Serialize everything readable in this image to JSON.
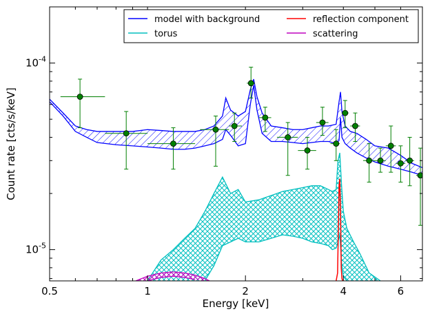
{
  "chart_data": {
    "type": "line",
    "xlabel": "Energy [keV]",
    "ylabel": "Count rate [cts/s/keV]",
    "xscale": "log",
    "yscale": "log",
    "xlim": [
      0.5,
      7.0
    ],
    "ylim": [
      6.8e-06,
      0.0002
    ],
    "x_ticks": [
      {
        "value": 0.5,
        "label": "0.5"
      },
      {
        "value": 1,
        "label": "1"
      },
      {
        "value": 2,
        "label": "2"
      },
      {
        "value": 4,
        "label": "4"
      },
      {
        "value": 6,
        "label": "6"
      }
    ],
    "y_ticks": [
      {
        "value": 1e-05,
        "base": "10",
        "exp": "-5"
      },
      {
        "value": 0.0001,
        "base": "10",
        "exp": "-4"
      }
    ],
    "legend_position": "top-right",
    "legend": [
      {
        "name": "model with background",
        "color": "#0000ff"
      },
      {
        "name": "reflection component",
        "color": "#ff0000"
      },
      {
        "name": "torus",
        "color": "#00bfbf"
      },
      {
        "name": "scattering",
        "color": "#bf00bf"
      }
    ],
    "series": [
      {
        "name": "model with background",
        "color": "#0000ff",
        "style": "band",
        "x": [
          0.5,
          0.55,
          0.6,
          0.65,
          0.7,
          0.8,
          0.9,
          1.0,
          1.1,
          1.2,
          1.3,
          1.4,
          1.5,
          1.6,
          1.7,
          1.74,
          1.8,
          1.9,
          2.0,
          2.07,
          2.12,
          2.17,
          2.25,
          2.4,
          2.6,
          2.8,
          3.0,
          3.2,
          3.4,
          3.6,
          3.8,
          3.88,
          3.92,
          3.96,
          4.05,
          4.2,
          4.4,
          4.7,
          5.0,
          5.5,
          6.0,
          6.5,
          7.0
        ],
        "upper": [
          6.4e-05,
          5.4e-05,
          4.6e-05,
          4.4e-05,
          4.3e-05,
          4.3e-05,
          4.3e-05,
          4.4e-05,
          4.35e-05,
          4.3e-05,
          4.3e-05,
          4.3e-05,
          4.4e-05,
          4.6e-05,
          5.2e-05,
          6.5e-05,
          5.6e-05,
          5.2e-05,
          5.5e-05,
          7.2e-05,
          8.2e-05,
          6.6e-05,
          5.4e-05,
          4.6e-05,
          4.5e-05,
          4.4e-05,
          4.4e-05,
          4.5e-05,
          4.6e-05,
          4.6e-05,
          4.7e-05,
          6.2e-05,
          7e-05,
          5.5e-05,
          4.6e-05,
          4.3e-05,
          4.2e-05,
          3.9e-05,
          3.6e-05,
          3.5e-05,
          3.2e-05,
          2.9e-05,
          2.75e-05
        ],
        "lower": [
          6.2e-05,
          5.2e-05,
          4.3e-05,
          4e-05,
          3.75e-05,
          3.65e-05,
          3.6e-05,
          3.55e-05,
          3.5e-05,
          3.45e-05,
          3.45e-05,
          3.5e-05,
          3.6e-05,
          3.7e-05,
          3.9e-05,
          4.4e-05,
          4.1e-05,
          3.6e-05,
          3.7e-05,
          6e-05,
          7.6e-05,
          5.6e-05,
          4.2e-05,
          3.8e-05,
          3.8e-05,
          3.75e-05,
          3.7e-05,
          3.75e-05,
          3.8e-05,
          3.8e-05,
          3.7e-05,
          3.85e-05,
          5.1e-05,
          4e-05,
          3.7e-05,
          3.5e-05,
          3.3e-05,
          3.1e-05,
          2.95e-05,
          2.8e-05,
          2.7e-05,
          2.6e-05,
          2.5e-05
        ]
      },
      {
        "name": "torus",
        "color": "#00bfbf",
        "style": "band",
        "x": [
          1.0,
          1.1,
          1.2,
          1.3,
          1.4,
          1.5,
          1.6,
          1.7,
          1.8,
          1.9,
          2.0,
          2.2,
          2.4,
          2.6,
          2.8,
          3.0,
          3.2,
          3.4,
          3.6,
          3.7,
          3.8,
          3.85,
          3.9,
          3.95,
          4.0,
          4.1,
          4.3,
          4.5,
          4.8,
          5.2
        ],
        "upper": [
          6.8e-06,
          8.8e-06,
          1e-05,
          1.15e-05,
          1.3e-05,
          1.6e-05,
          2e-05,
          2.45e-05,
          2e-05,
          2.1e-05,
          1.8e-05,
          1.85e-05,
          1.95e-05,
          2.05e-05,
          2.1e-05,
          2.15e-05,
          2.2e-05,
          2.2e-05,
          2.1e-05,
          2.05e-05,
          2.1e-05,
          3e-05,
          3.3e-05,
          2.2e-05,
          1.6e-05,
          1.3e-05,
          1.1e-05,
          9.5e-06,
          7.5e-06,
          6.8e-06
        ],
        "lower": [
          null,
          null,
          null,
          null,
          null,
          6.8e-06,
          8.2e-06,
          1.05e-05,
          1.1e-05,
          1.15e-05,
          1.1e-05,
          1.1e-05,
          1.15e-05,
          1.2e-05,
          1.18e-05,
          1.15e-05,
          1.1e-05,
          1.08e-05,
          1.05e-05,
          1e-05,
          1.02e-05,
          1.1e-05,
          1.2e-05,
          8.5e-06,
          7.2e-06,
          6.8e-06,
          null,
          null,
          null,
          null
        ]
      },
      {
        "name": "reflection component",
        "color": "#ff0000",
        "style": "line",
        "x": [
          3.8,
          3.84,
          3.86,
          3.88,
          3.9,
          3.92,
          3.94,
          3.96,
          3.98
        ],
        "values": [
          6.8e-06,
          7.5e-06,
          1.3e-05,
          2.2e-05,
          2.4e-05,
          1.6e-05,
          8e-06,
          7e-06,
          6.8e-06
        ]
      },
      {
        "name": "scattering",
        "color": "#bf00bf",
        "style": "band",
        "x": [
          0.92,
          1.0,
          1.1,
          1.2,
          1.3,
          1.4,
          1.5,
          1.55
        ],
        "upper": [
          6.8e-06,
          7.2e-06,
          7.5e-06,
          7.6e-06,
          7.5e-06,
          7.3e-06,
          7e-06,
          6.8e-06
        ],
        "lower": [
          null,
          6.8e-06,
          7.1e-06,
          7.2e-06,
          7.1e-06,
          6.9e-06,
          null,
          null
        ]
      }
    ],
    "data_points": {
      "color": "#007f00",
      "points": [
        {
          "x": 0.62,
          "y": 6.6e-05,
          "xerr": [
            0.54,
            0.74
          ],
          "yerr": [
            4.5e-05,
            8.2e-05
          ]
        },
        {
          "x": 0.86,
          "y": 4.2e-05,
          "xerr": [
            0.74,
            1.0
          ],
          "yerr": [
            2.7e-05,
            5.5e-05
          ]
        },
        {
          "x": 1.2,
          "y": 3.7e-05,
          "xerr": [
            1.0,
            1.4
          ],
          "yerr": [
            2.7e-05,
            4.5e-05
          ]
        },
        {
          "x": 1.62,
          "y": 4.4e-05,
          "xerr": [
            1.45,
            1.78
          ],
          "yerr": [
            2.8e-05,
            5.2e-05
          ]
        },
        {
          "x": 1.85,
          "y": 4.6e-05,
          "xerr": [
            1.78,
            1.95
          ],
          "yerr": [
            3.8e-05,
            5.4e-05
          ]
        },
        {
          "x": 2.08,
          "y": 7.8e-05,
          "xerr": [
            2.02,
            2.14
          ],
          "yerr": [
            6.5e-05,
            9.5e-05
          ]
        },
        {
          "x": 2.3,
          "y": 5.1e-05,
          "xerr": [
            2.2,
            2.4
          ],
          "yerr": [
            4.3e-05,
            5.8e-05
          ]
        },
        {
          "x": 2.7,
          "y": 4e-05,
          "xerr": [
            2.5,
            2.9
          ],
          "yerr": [
            2.5e-05,
            4.8e-05
          ]
        },
        {
          "x": 3.1,
          "y": 3.4e-05,
          "xerr": [
            2.9,
            3.3
          ],
          "yerr": [
            2.7e-05,
            4e-05
          ]
        },
        {
          "x": 3.45,
          "y": 4.8e-05,
          "xerr": [
            3.3,
            3.6
          ],
          "yerr": [
            4.1e-05,
            5.8e-05
          ]
        },
        {
          "x": 3.8,
          "y": 3.7e-05,
          "xerr": [
            3.65,
            3.9
          ],
          "yerr": [
            3e-05,
            4.4e-05
          ]
        },
        {
          "x": 4.05,
          "y": 5.4e-05,
          "xerr": [
            3.95,
            4.15
          ],
          "yerr": [
            4.5e-05,
            6.3e-05
          ]
        },
        {
          "x": 4.35,
          "y": 4.6e-05,
          "xerr": [
            4.2,
            4.5
          ],
          "yerr": [
            3.8e-05,
            5.4e-05
          ]
        },
        {
          "x": 4.8,
          "y": 3e-05,
          "xerr": [
            4.6,
            5.0
          ],
          "yerr": [
            2.3e-05,
            3.7e-05
          ]
        },
        {
          "x": 5.2,
          "y": 3e-05,
          "xerr": [
            5.0,
            5.4
          ],
          "yerr": [
            2.6e-05,
            3.5e-05
          ]
        },
        {
          "x": 5.6,
          "y": 3.6e-05,
          "xerr": [
            5.4,
            5.8
          ],
          "yerr": [
            2.6e-05,
            4.6e-05
          ]
        },
        {
          "x": 6.0,
          "y": 2.9e-05,
          "xerr": [
            5.8,
            6.2
          ],
          "yerr": [
            2.3e-05,
            3.6e-05
          ]
        },
        {
          "x": 6.4,
          "y": 3e-05,
          "xerr": [
            6.2,
            6.6
          ],
          "yerr": [
            2.2e-05,
            4e-05
          ]
        },
        {
          "x": 6.9,
          "y": 2.5e-05,
          "xerr": [
            6.7,
            7.0
          ],
          "yerr": [
            1.35e-05,
            3.5e-05
          ]
        }
      ]
    }
  }
}
